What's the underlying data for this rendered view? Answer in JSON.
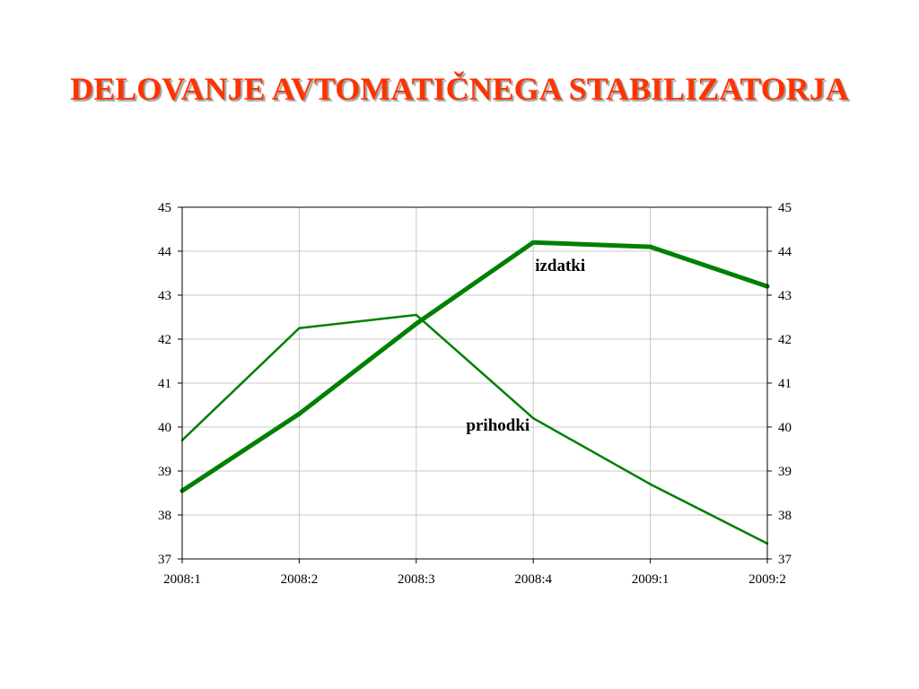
{
  "slide": {
    "title": "DELOVANJE AVTOMATIČNEGA STABILIZATORJA"
  },
  "chart_data": {
    "type": "line",
    "categories": [
      "2008:1",
      "2008:2",
      "2008:3",
      "2008:4",
      "2009:1",
      "2009:2"
    ],
    "series": [
      {
        "name": "prihodki",
        "values": [
          39.7,
          42.25,
          42.55,
          40.2,
          38.7,
          37.35
        ],
        "color": "#008000",
        "weight": "thin"
      },
      {
        "name": "izdatki",
        "values": [
          38.55,
          40.3,
          42.35,
          44.2,
          44.1,
          43.2
        ],
        "color": "#008000",
        "weight": "thick"
      }
    ],
    "ylim": [
      37,
      45
    ],
    "yticks": [
      "37",
      "38",
      "39",
      "40",
      "41",
      "42",
      "43",
      "44",
      "45"
    ],
    "y_axis_left": true,
    "y_axis_right": true,
    "grid": true,
    "title": "",
    "xlabel": "",
    "ylabel": ""
  }
}
